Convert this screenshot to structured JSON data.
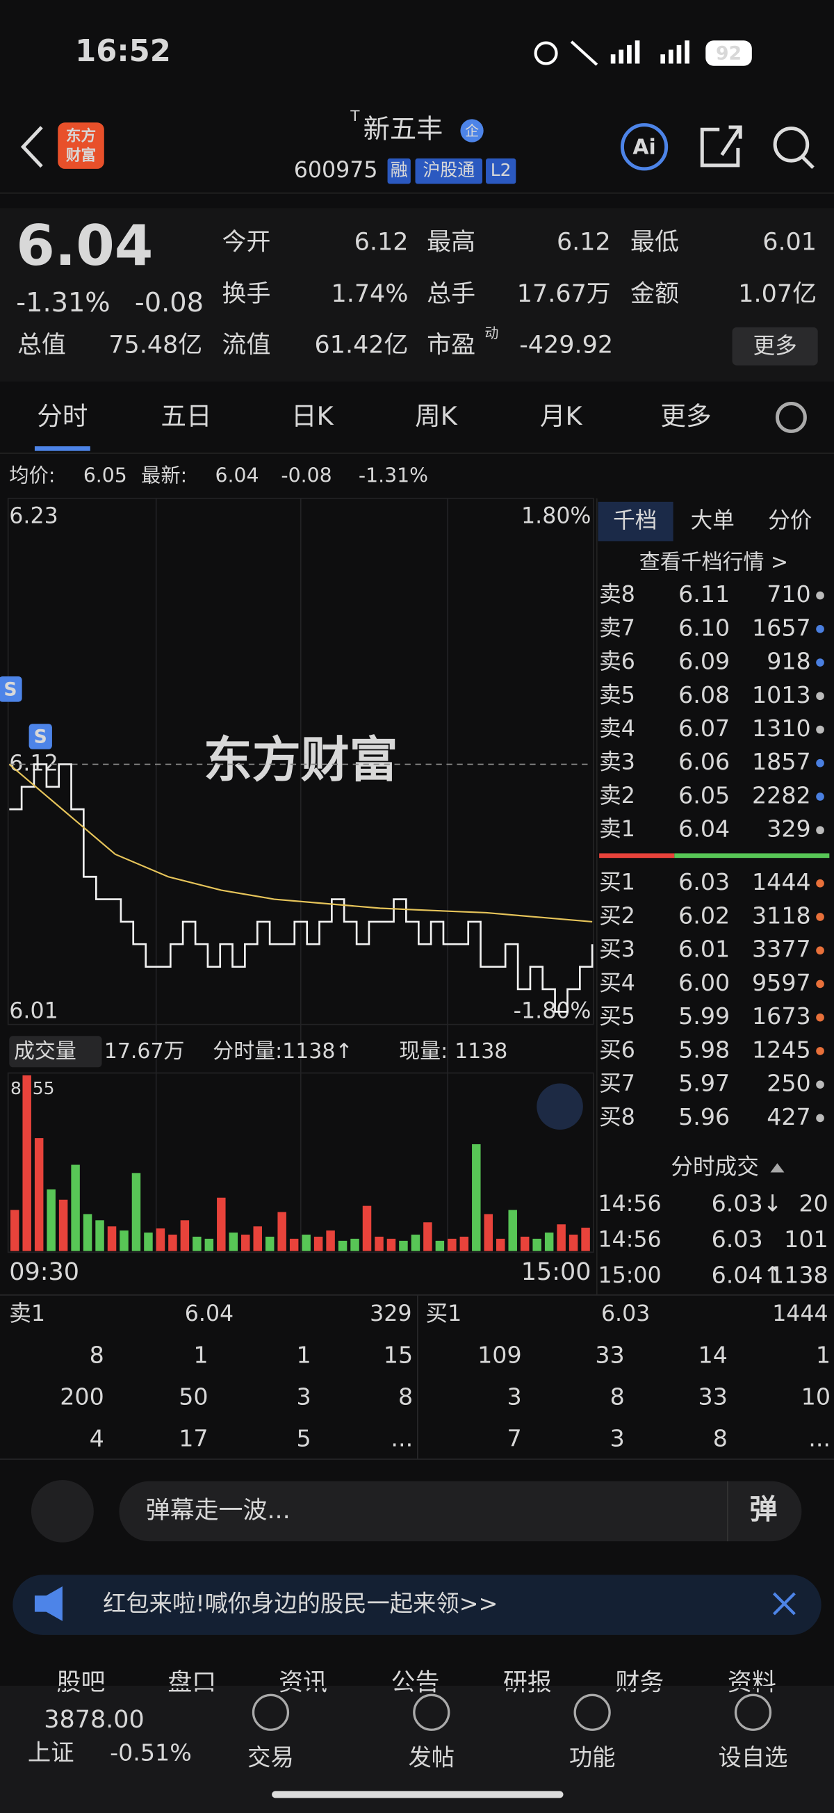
{
  "status": {
    "time": "16:52",
    "battery": "92"
  },
  "header": {
    "logo": [
      "东方",
      "财富"
    ],
    "prefix": "T",
    "name": "新五丰",
    "badge": "企",
    "code": "600975",
    "tags": [
      "融",
      "沪股通",
      "L2"
    ],
    "ai": "Ai"
  },
  "quote": {
    "price": "6.04",
    "pct": "-1.31%",
    "change": "-0.08",
    "fields": [
      {
        "label": "今开",
        "value": "6.12"
      },
      {
        "label": "最高",
        "value": "6.12"
      },
      {
        "label": "最低",
        "value": "6.01"
      },
      {
        "label": "换手",
        "value": "1.74%"
      },
      {
        "label": "总手",
        "value": "17.67万"
      },
      {
        "label": "金额",
        "value": "1.07亿"
      },
      {
        "label": "总值",
        "value": "75.48亿"
      },
      {
        "label": "流值",
        "value": "61.42亿"
      },
      {
        "label": "市盈",
        "sup": "动",
        "value": "-429.92"
      }
    ],
    "more": "更多"
  },
  "tabs": [
    "分时",
    "五日",
    "日K",
    "周K",
    "月K",
    "更多"
  ],
  "summary": {
    "avg_label": "均价:",
    "avg": "6.05",
    "last_label": "最新:",
    "last": "6.04",
    "change": "-0.08",
    "pct": "-1.31%"
  },
  "chart_data": {
    "type": "line",
    "watermark": "东方财富",
    "markers": [
      "S",
      "S"
    ],
    "ylim": [
      6.01,
      6.23
    ],
    "yticks": [
      {
        "value": 6.23,
        "label": "6.23"
      },
      {
        "value": 6.12,
        "label": "6.12"
      },
      {
        "value": 6.01,
        "label": "6.01"
      }
    ],
    "y2ticks": [
      {
        "value": 1.8,
        "label": "1.80%"
      },
      {
        "value": -1.8,
        "label": "-1.80%"
      }
    ],
    "series": [
      {
        "name": "最新",
        "color": "#f2f2f2",
        "values": [
          6.1,
          6.11,
          6.12,
          6.11,
          6.12,
          6.1,
          6.07,
          6.06,
          6.06,
          6.05,
          6.04,
          6.03,
          6.03,
          6.04,
          6.05,
          6.04,
          6.03,
          6.04,
          6.03,
          6.04,
          6.05,
          6.04,
          6.04,
          6.05,
          6.04,
          6.05,
          6.06,
          6.05,
          6.04,
          6.05,
          6.05,
          6.06,
          6.05,
          6.04,
          6.05,
          6.04,
          6.04,
          6.05,
          6.03,
          6.03,
          6.04,
          6.02,
          6.03,
          6.02,
          6.01,
          6.02,
          6.03,
          6.04
        ]
      },
      {
        "name": "均价",
        "color": "#e6c45a",
        "values": [
          6.12,
          6.1,
          6.08,
          6.07,
          6.064,
          6.06,
          6.058,
          6.056,
          6.055,
          6.054,
          6.052,
          6.05
        ]
      }
    ],
    "volume_label": "成交量",
    "volume_total": "17.67万",
    "tick_volume": "分时量:1138↑",
    "now_label": "现量:",
    "now_volume": "1138",
    "vol_ylim": [
      0,
      8555
    ],
    "vol_ticks": [
      8555
    ],
    "volume": [
      2000,
      8555,
      5500,
      3000,
      2500,
      4200,
      1800,
      1500,
      1200,
      1000,
      3800,
      900,
      1100,
      800,
      1500,
      700,
      600,
      2600,
      900,
      800,
      1200,
      700,
      1900,
      600,
      800,
      700,
      1000,
      500,
      600,
      2200,
      700,
      600,
      500,
      800,
      1400,
      500,
      600,
      700,
      5200,
      1800,
      600,
      2000,
      700,
      600,
      900,
      1300,
      800,
      1138
    ],
    "xticks": [
      "09:30",
      "15:00"
    ]
  },
  "book": {
    "tabs": [
      "千档",
      "大单",
      "分价"
    ],
    "link": "查看千档行情 >",
    "sells": [
      {
        "label": "卖8",
        "price": "6.11",
        "vol": "710",
        "dot": "#bbbbbb"
      },
      {
        "label": "卖7",
        "price": "6.10",
        "vol": "1657",
        "dot": "#4a7fe0"
      },
      {
        "label": "卖6",
        "price": "6.09",
        "vol": "918",
        "dot": "#4a7fe0"
      },
      {
        "label": "卖5",
        "price": "6.08",
        "vol": "1013",
        "dot": "#bbbbbb"
      },
      {
        "label": "卖4",
        "price": "6.07",
        "vol": "1310",
        "dot": "#bbbbbb"
      },
      {
        "label": "卖3",
        "price": "6.06",
        "vol": "1857",
        "dot": "#4a7fe0"
      },
      {
        "label": "卖2",
        "price": "6.05",
        "vol": "2282",
        "dot": "#4a7fe0"
      },
      {
        "label": "卖1",
        "price": "6.04",
        "vol": "329",
        "dot": "#bbbbbb"
      }
    ],
    "buys": [
      {
        "label": "买1",
        "price": "6.03",
        "vol": "1444",
        "dot": "#e8703a"
      },
      {
        "label": "买2",
        "price": "6.02",
        "vol": "3118",
        "dot": "#e8703a"
      },
      {
        "label": "买3",
        "price": "6.01",
        "vol": "3377",
        "dot": "#e8703a"
      },
      {
        "label": "买4",
        "price": "6.00",
        "vol": "9597",
        "dot": "#e8703a"
      },
      {
        "label": "买5",
        "price": "5.99",
        "vol": "1673",
        "dot": "#e8703a"
      },
      {
        "label": "买6",
        "price": "5.98",
        "vol": "1245",
        "dot": "#e8703a"
      },
      {
        "label": "买7",
        "price": "5.97",
        "vol": "250",
        "dot": "#bbbbbb"
      },
      {
        "label": "买8",
        "price": "5.96",
        "vol": "427",
        "dot": "#bbbbbb"
      }
    ],
    "trades_title": "分时成交",
    "trades": [
      [
        "14:56",
        "6.03↓",
        "20"
      ],
      [
        "14:56",
        "6.03",
        "101"
      ],
      [
        "15:00",
        "6.04↑",
        "1138"
      ]
    ]
  },
  "queue": {
    "sell": {
      "label": "卖1",
      "price": "6.04",
      "vol": "329",
      "grid": [
        [
          "8",
          "1",
          "1",
          "15"
        ],
        [
          "200",
          "50",
          "3",
          "8"
        ],
        [
          "4",
          "17",
          "5",
          "..."
        ]
      ]
    },
    "buy": {
      "label": "买1",
      "price": "6.03",
      "vol": "1444",
      "grid": [
        [
          "109",
          "33",
          "14",
          "1"
        ],
        [
          "3",
          "8",
          "33",
          "10"
        ],
        [
          "7",
          "3",
          "8",
          "..."
        ]
      ]
    }
  },
  "comment": {
    "placeholder": "弹幕走一波...",
    "button": "弹"
  },
  "banner": {
    "text": "红包来啦!喊你身边的股民一起来领>>"
  },
  "subtabs": [
    "股吧",
    "盘口",
    "资讯",
    "公告",
    "研报",
    "财务",
    "资料"
  ],
  "nav": {
    "index_value": "3878.00",
    "index_name": "上证",
    "index_pct": "-0.51%",
    "items": [
      "交易",
      "发帖",
      "功能",
      "设自选"
    ]
  }
}
